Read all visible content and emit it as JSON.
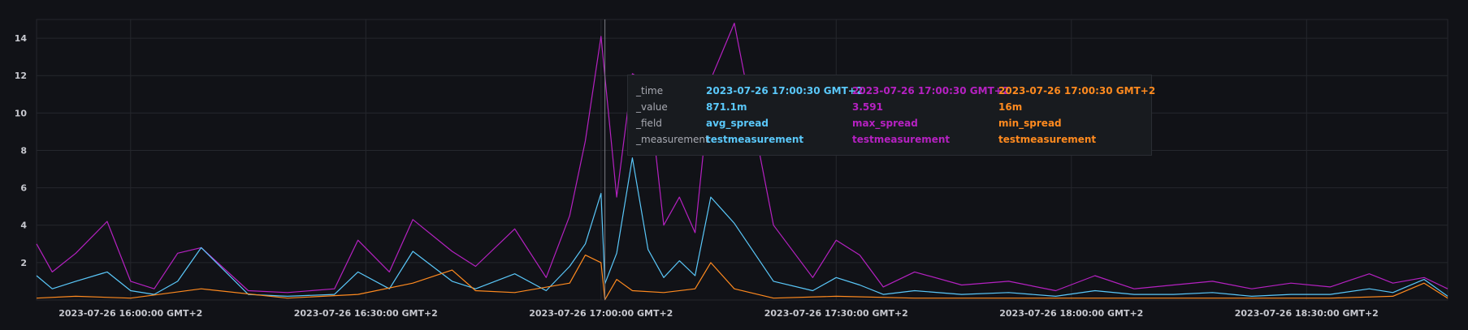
{
  "chart_data": {
    "type": "line",
    "title": "",
    "xlabel": "",
    "ylabel": "",
    "ylim": [
      0,
      15
    ],
    "yticks": [
      2,
      4,
      6,
      8,
      10,
      12,
      14
    ],
    "x_ticks": [
      {
        "time": "2023-07-26 16:00:00",
        "label": "2023-07-26 16:00:00 GMT+2"
      },
      {
        "time": "2023-07-26 16:30:00",
        "label": "2023-07-26 16:30:00 GMT+2"
      },
      {
        "time": "2023-07-26 17:00:00",
        "label": "2023-07-26 17:00:00 GMT+2"
      },
      {
        "time": "2023-07-26 17:30:00",
        "label": "2023-07-26 17:30:00 GMT+2"
      },
      {
        "time": "2023-07-26 18:00:00",
        "label": "2023-07-26 18:00:00 GMT+2"
      },
      {
        "time": "2023-07-26 18:30:00",
        "label": "2023-07-26 18:30:00 GMT+2"
      }
    ],
    "x_start": "2023-07-26 15:48:00",
    "x_end": "2023-07-26 18:48:00",
    "grid": true,
    "hover_time": "2023-07-26 17:00:30",
    "series": [
      {
        "name": "max_spread",
        "color": "#b521c1",
        "x": [
          "2023-07-26 15:48:00",
          "2023-07-26 15:50:00",
          "2023-07-26 15:53:00",
          "2023-07-26 15:57:00",
          "2023-07-26 16:00:00",
          "2023-07-26 16:03:00",
          "2023-07-26 16:06:00",
          "2023-07-26 16:09:00",
          "2023-07-26 16:15:00",
          "2023-07-26 16:20:00",
          "2023-07-26 16:26:00",
          "2023-07-26 16:29:00",
          "2023-07-26 16:33:00",
          "2023-07-26 16:36:00",
          "2023-07-26 16:41:00",
          "2023-07-26 16:44:00",
          "2023-07-26 16:49:00",
          "2023-07-26 16:53:00",
          "2023-07-26 16:56:00",
          "2023-07-26 16:58:00",
          "2023-07-26 17:00:00",
          "2023-07-26 17:02:00",
          "2023-07-26 17:04:00",
          "2023-07-26 17:06:00",
          "2023-07-26 17:08:00",
          "2023-07-26 17:10:00",
          "2023-07-26 17:12:00",
          "2023-07-26 17:14:00",
          "2023-07-26 17:17:00",
          "2023-07-26 17:22:00",
          "2023-07-26 17:27:00",
          "2023-07-26 17:30:00",
          "2023-07-26 17:33:00",
          "2023-07-26 17:36:00",
          "2023-07-26 17:40:00",
          "2023-07-26 17:46:00",
          "2023-07-26 17:52:00",
          "2023-07-26 17:58:00",
          "2023-07-26 18:03:00",
          "2023-07-26 18:08:00",
          "2023-07-26 18:13:00",
          "2023-07-26 18:18:00",
          "2023-07-26 18:23:00",
          "2023-07-26 18:28:00",
          "2023-07-26 18:33:00",
          "2023-07-26 18:38:00",
          "2023-07-26 18:41:00",
          "2023-07-26 18:45:00",
          "2023-07-26 18:48:00"
        ],
        "y": [
          3.0,
          1.5,
          2.5,
          4.2,
          1.0,
          0.6,
          2.5,
          2.8,
          0.5,
          0.4,
          0.6,
          3.2,
          1.5,
          4.3,
          2.6,
          1.8,
          3.8,
          1.2,
          4.5,
          8.5,
          14.1,
          5.5,
          12.1,
          11.6,
          4.0,
          5.5,
          3.6,
          11.8,
          14.8,
          4.0,
          1.2,
          3.2,
          2.4,
          0.7,
          1.5,
          0.8,
          1.0,
          0.5,
          1.3,
          0.6,
          0.8,
          1.0,
          0.6,
          0.9,
          0.7,
          1.4,
          0.9,
          1.2,
          0.6
        ]
      },
      {
        "name": "avg_spread",
        "color": "#5ac8fa",
        "x": [
          "2023-07-26 15:48:00",
          "2023-07-26 15:50:00",
          "2023-07-26 15:53:00",
          "2023-07-26 15:57:00",
          "2023-07-26 16:00:00",
          "2023-07-26 16:03:00",
          "2023-07-26 16:06:00",
          "2023-07-26 16:09:00",
          "2023-07-26 16:15:00",
          "2023-07-26 16:20:00",
          "2023-07-26 16:26:00",
          "2023-07-26 16:29:00",
          "2023-07-26 16:33:00",
          "2023-07-26 16:36:00",
          "2023-07-26 16:41:00",
          "2023-07-26 16:44:00",
          "2023-07-26 16:49:00",
          "2023-07-26 16:53:00",
          "2023-07-26 16:56:00",
          "2023-07-26 16:58:00",
          "2023-07-26 17:00:00",
          "2023-07-26 17:00:30",
          "2023-07-26 17:02:00",
          "2023-07-26 17:04:00",
          "2023-07-26 17:06:00",
          "2023-07-26 17:08:00",
          "2023-07-26 17:10:00",
          "2023-07-26 17:12:00",
          "2023-07-26 17:14:00",
          "2023-07-26 17:17:00",
          "2023-07-26 17:22:00",
          "2023-07-26 17:27:00",
          "2023-07-26 17:30:00",
          "2023-07-26 17:33:00",
          "2023-07-26 17:36:00",
          "2023-07-26 17:40:00",
          "2023-07-26 17:46:00",
          "2023-07-26 17:52:00",
          "2023-07-26 17:58:00",
          "2023-07-26 18:03:00",
          "2023-07-26 18:08:00",
          "2023-07-26 18:13:00",
          "2023-07-26 18:18:00",
          "2023-07-26 18:23:00",
          "2023-07-26 18:28:00",
          "2023-07-26 18:33:00",
          "2023-07-26 18:38:00",
          "2023-07-26 18:41:00",
          "2023-07-26 18:45:00",
          "2023-07-26 18:48:00"
        ],
        "y": [
          1.3,
          0.6,
          1.0,
          1.5,
          0.5,
          0.3,
          1.0,
          2.8,
          0.3,
          0.2,
          0.3,
          1.5,
          0.6,
          2.6,
          1.0,
          0.6,
          1.4,
          0.5,
          1.8,
          3.0,
          5.7,
          0.87,
          2.5,
          7.6,
          2.7,
          1.2,
          2.1,
          1.3,
          5.5,
          4.1,
          1.0,
          0.5,
          1.2,
          0.8,
          0.3,
          0.5,
          0.3,
          0.4,
          0.2,
          0.5,
          0.3,
          0.3,
          0.4,
          0.2,
          0.3,
          0.3,
          0.6,
          0.4,
          1.1,
          0.2
        ]
      },
      {
        "name": "min_spread",
        "color": "#ff8a1f",
        "x": [
          "2023-07-26 15:48:00",
          "2023-07-26 15:53:00",
          "2023-07-26 16:00:00",
          "2023-07-26 16:09:00",
          "2023-07-26 16:20:00",
          "2023-07-26 16:29:00",
          "2023-07-26 16:36:00",
          "2023-07-26 16:41:00",
          "2023-07-26 16:44:00",
          "2023-07-26 16:49:00",
          "2023-07-26 16:56:00",
          "2023-07-26 16:58:00",
          "2023-07-26 17:00:00",
          "2023-07-26 17:00:30",
          "2023-07-26 17:02:00",
          "2023-07-26 17:04:00",
          "2023-07-26 17:08:00",
          "2023-07-26 17:12:00",
          "2023-07-26 17:14:00",
          "2023-07-26 17:17:00",
          "2023-07-26 17:22:00",
          "2023-07-26 17:30:00",
          "2023-07-26 17:40:00",
          "2023-07-26 17:52:00",
          "2023-07-26 18:03:00",
          "2023-07-26 18:13:00",
          "2023-07-26 18:23:00",
          "2023-07-26 18:33:00",
          "2023-07-26 18:41:00",
          "2023-07-26 18:45:00",
          "2023-07-26 18:48:00"
        ],
        "y": [
          0.1,
          0.2,
          0.1,
          0.6,
          0.1,
          0.3,
          0.9,
          1.6,
          0.5,
          0.4,
          0.9,
          2.4,
          2.0,
          0.016,
          1.1,
          0.5,
          0.4,
          0.6,
          2.0,
          0.6,
          0.1,
          0.2,
          0.1,
          0.1,
          0.1,
          0.1,
          0.1,
          0.1,
          0.2,
          0.9,
          0.1
        ]
      }
    ]
  },
  "tooltip": {
    "keys": [
      "_time",
      "_value",
      "_field",
      "_measurement"
    ],
    "columns": [
      {
        "color": "#5ac8fa",
        "time": "2023-07-26 17:00:30 GMT+2",
        "value": "871.1m",
        "field": "avg_spread",
        "measurement": "testmeasurement"
      },
      {
        "color": "#b521c1",
        "time": "2023-07-26 17:00:30 GMT+2",
        "value": "3.591",
        "field": "max_spread",
        "measurement": "testmeasurement"
      },
      {
        "color": "#ff8a1f",
        "time": "2023-07-26 17:00:30 GMT+2",
        "value": "16m",
        "field": "min_spread",
        "measurement": "testmeasurement"
      }
    ]
  }
}
